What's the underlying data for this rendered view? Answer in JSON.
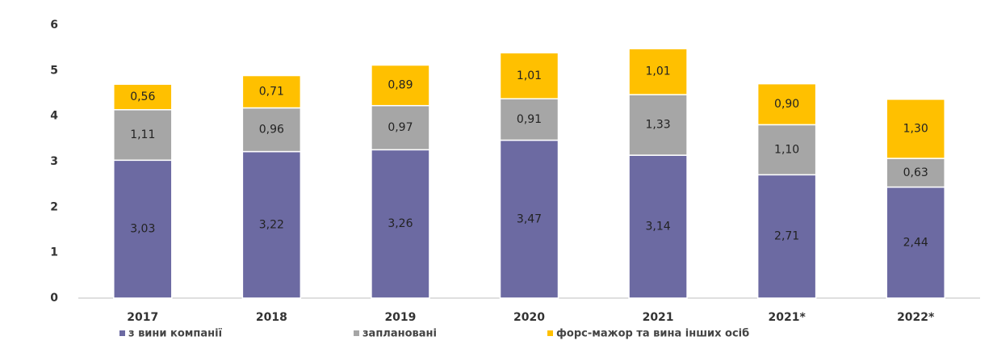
{
  "chart_data": {
    "type": "stacked_bar",
    "categories": [
      "2017",
      "2018",
      "2019",
      "2020",
      "2021",
      "2021*",
      "2022*"
    ],
    "series": [
      {
        "name": "з вини компанії",
        "color": "#6c6aa2",
        "values": [
          3.03,
          3.22,
          3.26,
          3.47,
          3.14,
          2.71,
          2.44
        ],
        "value_labels": [
          "3,03",
          "3,22",
          "3,26",
          "3,47",
          "3,14",
          "2,71",
          "2,44"
        ]
      },
      {
        "name": "заплановані",
        "color": "#a6a6a6",
        "values": [
          1.11,
          0.96,
          0.97,
          0.91,
          1.33,
          1.1,
          0.63
        ],
        "value_labels": [
          "1,11",
          "0,96",
          "0,97",
          "0,91",
          "1,33",
          "1,10",
          "0,63"
        ]
      },
      {
        "name": "форс-мажор та вина інших осіб",
        "color": "#ffc000",
        "values": [
          0.56,
          0.71,
          0.89,
          1.01,
          1.01,
          0.9,
          1.3
        ],
        "value_labels": [
          "0,56",
          "0,71",
          "0,89",
          "1,01",
          "1,01",
          "0,90",
          "1,30"
        ]
      }
    ],
    "ylim": [
      0,
      6
    ],
    "yticks": [
      0,
      1,
      2,
      3,
      4,
      5,
      6
    ],
    "grid": false,
    "legend": "bottom"
  }
}
